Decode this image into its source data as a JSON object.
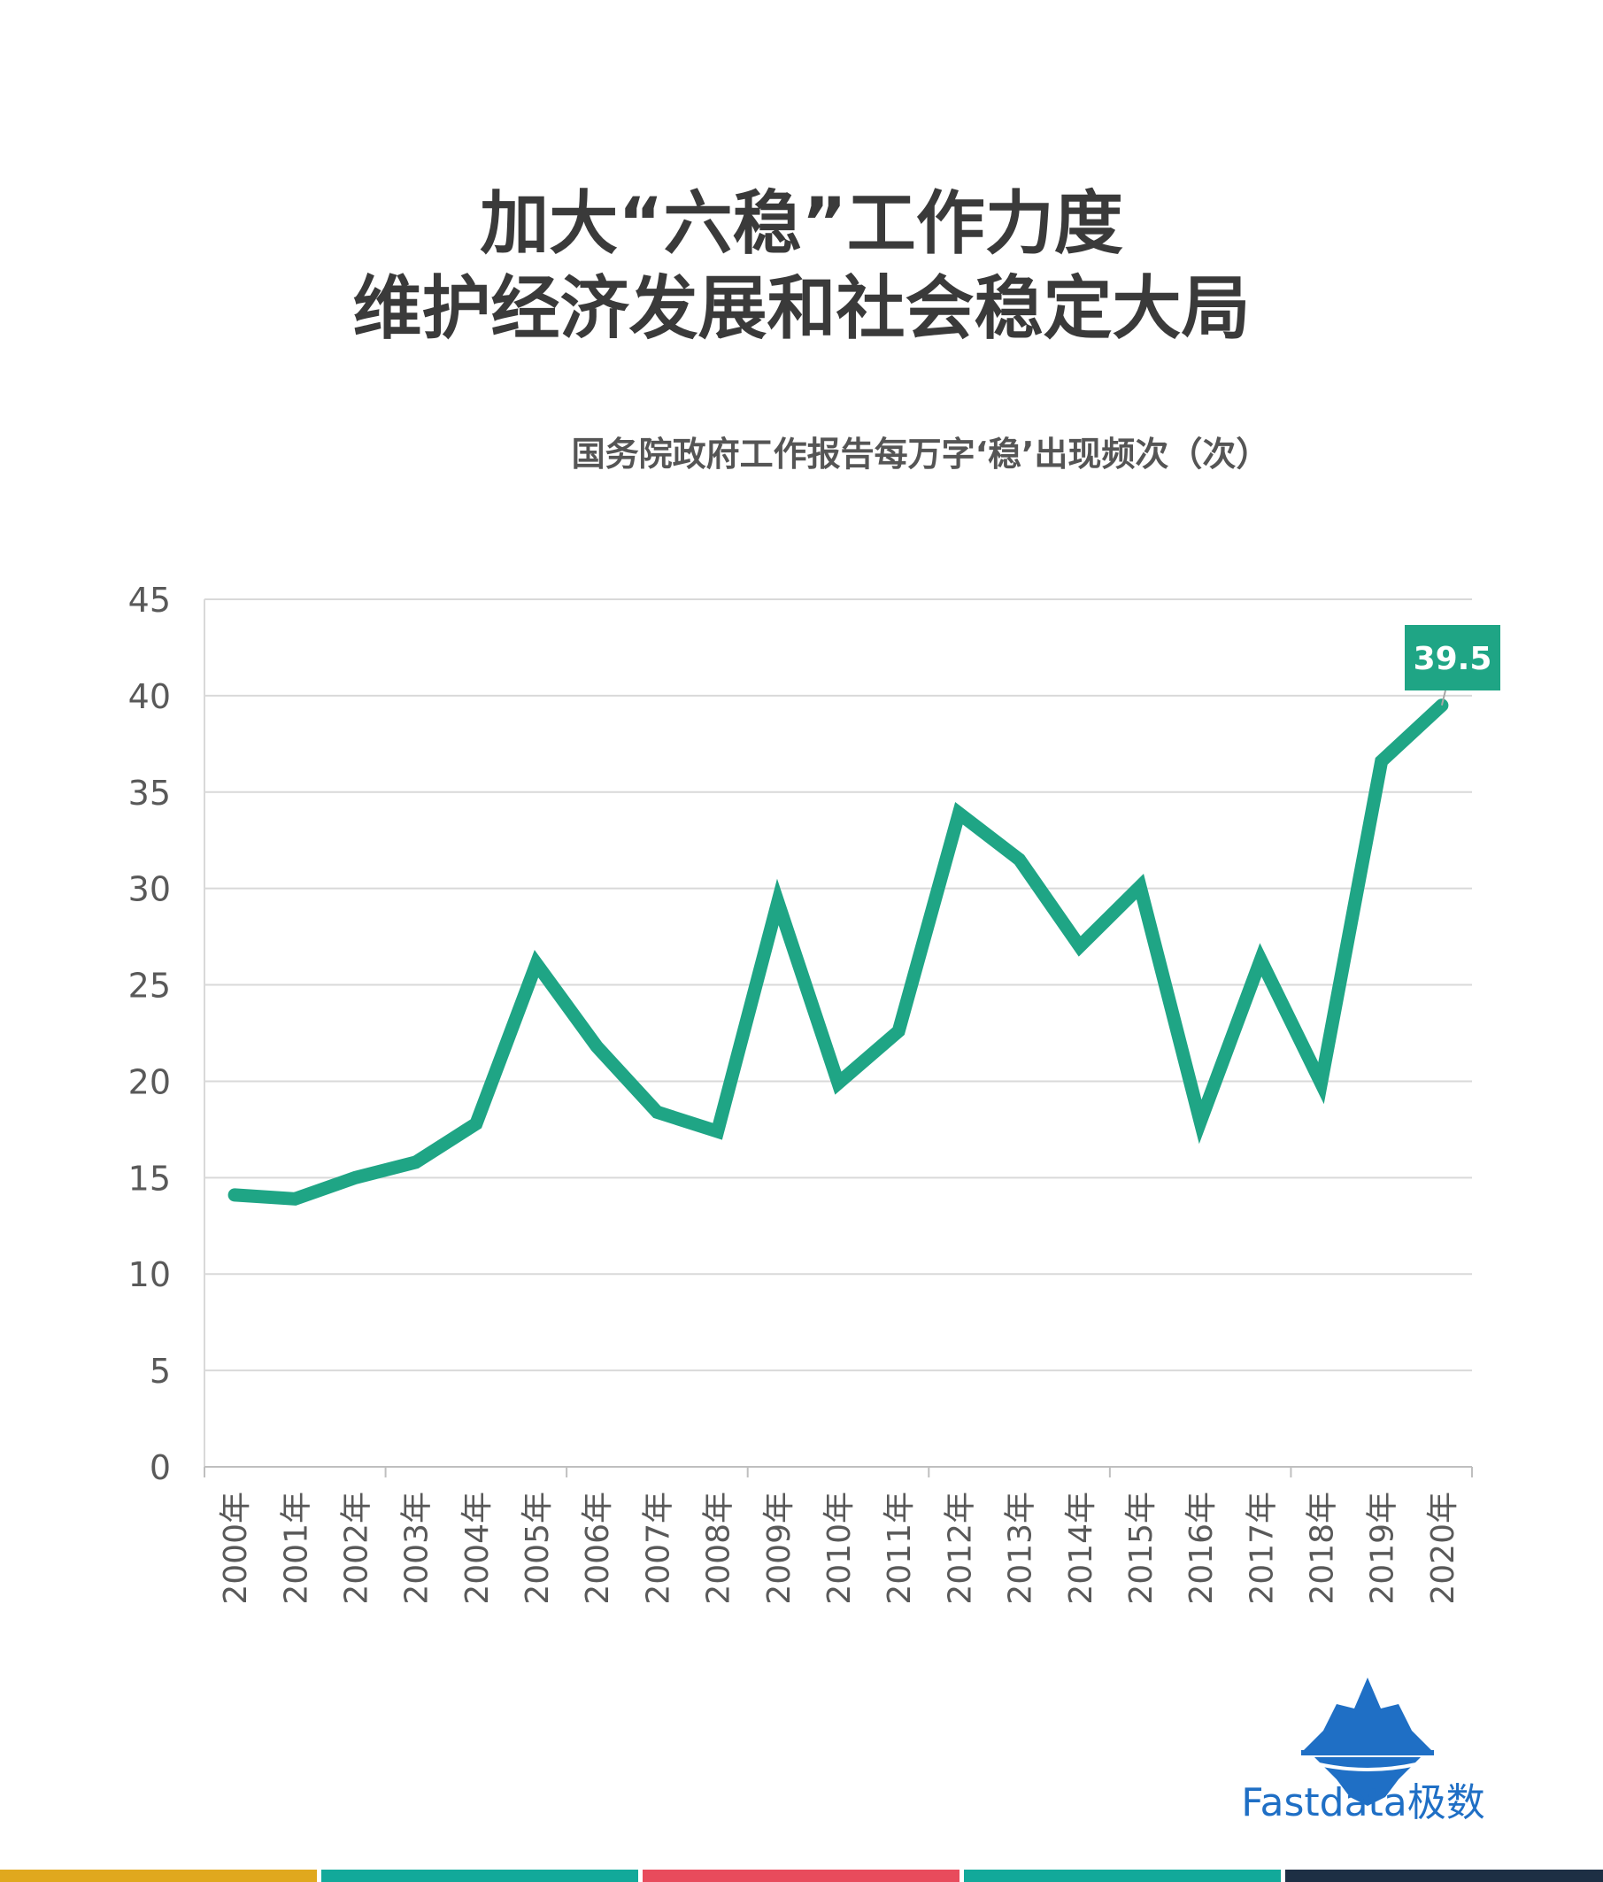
{
  "title": {
    "line1": "加大“六稳”工作力度",
    "line2": "维护经济发展和社会稳定大局"
  },
  "brand": {
    "name": "Fastdata极数",
    "logo_icon": "iceberg-icon",
    "color": "#1f6fc5"
  },
  "colors": {
    "line": "#1fa585",
    "grid": "#d9d9d9",
    "bottom_bar": [
      "#e0a81e",
      "#12a99a",
      "#e84b5c",
      "#12a99a",
      "#1d2f44"
    ]
  },
  "chart_data": {
    "type": "line",
    "title": "国务院政府工作报告每万字‘稳’出现频次（次）",
    "xlabel": "",
    "ylabel": "",
    "x": [
      "2000年",
      "2001年",
      "2002年",
      "2003年",
      "2004年",
      "2005年",
      "2006年",
      "2007年",
      "2008年",
      "2009年",
      "2010年",
      "2011年",
      "2012年",
      "2013年",
      "2014年",
      "2015年",
      "2016年",
      "2017年",
      "2018年",
      "2019年",
      "2020年"
    ],
    "yticks": [
      "0",
      "5",
      "10",
      "15",
      "20",
      "25",
      "30",
      "35",
      "40",
      "45"
    ],
    "ylim": [
      0,
      45
    ],
    "grid": true,
    "series": [
      {
        "values": [
          14.1,
          13.9,
          15.0,
          15.8,
          17.8,
          26.1,
          21.8,
          18.4,
          17.4,
          29.3,
          19.9,
          22.6,
          33.9,
          31.5,
          27.0,
          30.1,
          17.9,
          26.3,
          19.9,
          36.6,
          39.5
        ]
      }
    ],
    "annotation": {
      "label": "39.5",
      "index": 20
    }
  }
}
